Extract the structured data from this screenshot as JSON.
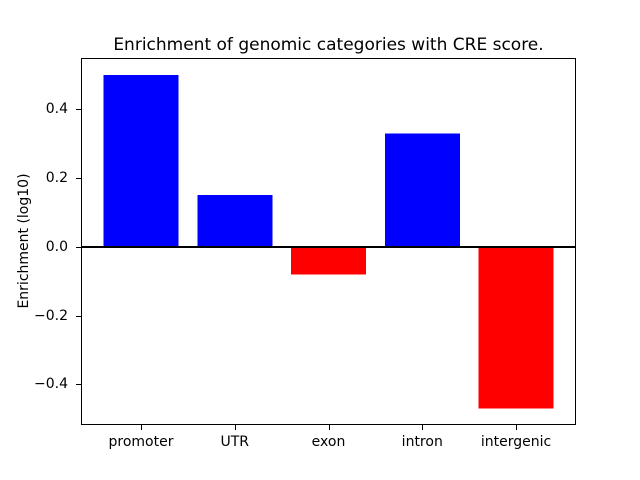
{
  "figure": {
    "title": "Enrichment of genomic categories with CRE score.",
    "ylabel": "Enrichment (log10)"
  },
  "chart_data": {
    "type": "bar",
    "title": "Enrichment of genomic categories with CRE score.",
    "xlabel": "",
    "ylabel": "Enrichment (log10)",
    "categories": [
      "promoter",
      "UTR",
      "exon",
      "intron",
      "intergenic"
    ],
    "values": [
      0.5,
      0.15,
      -0.08,
      0.33,
      -0.47
    ],
    "bar_colors": [
      "#0000ff",
      "#0000ff",
      "#ff0000",
      "#0000ff",
      "#ff0000"
    ],
    "positive_color": "#0000ff",
    "negative_color": "#ff0000",
    "yticks": [
      0.4,
      0.2,
      0.0,
      -0.2,
      -0.4
    ],
    "ytick_labels": [
      "0.4",
      "0.2",
      "0.0",
      "−0.2",
      "−0.4"
    ],
    "ylim": [
      -0.518,
      0.549
    ],
    "xlim": [
      -0.64,
      4.64
    ],
    "bar_width": 0.8,
    "zero_line": true,
    "grid": false,
    "legend": null,
    "background": "#ffffff",
    "spine_color": "#000000"
  }
}
